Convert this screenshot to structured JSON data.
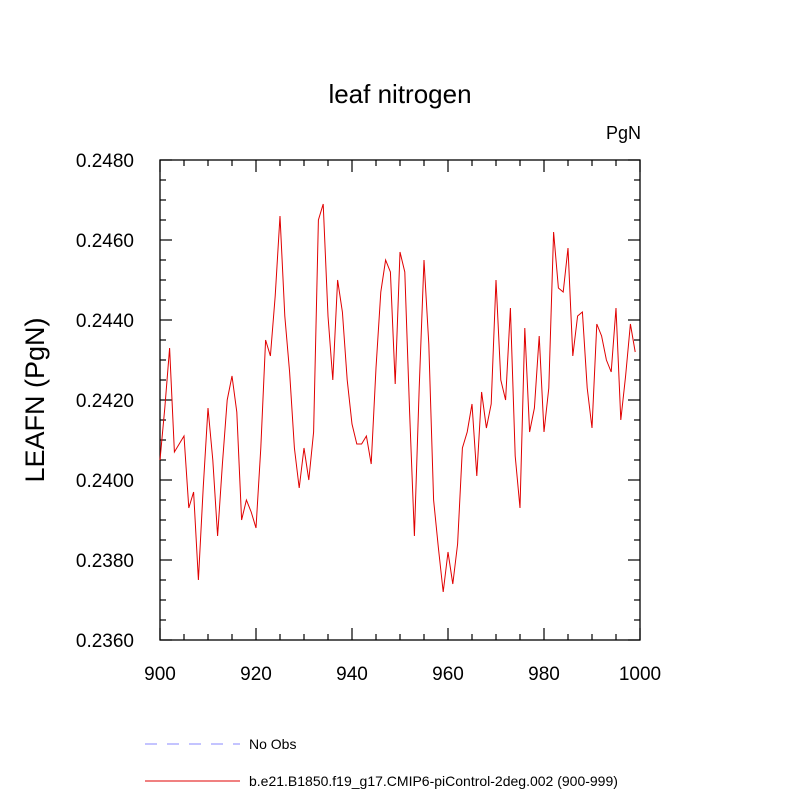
{
  "chart_data": {
    "type": "line",
    "title": "leaf nitrogen",
    "units_label": "PgN",
    "ylabel": "LEAFN  (PgN)",
    "xlabel": "",
    "xlim": [
      900,
      1000
    ],
    "ylim": [
      0.236,
      0.248
    ],
    "x_ticks": [
      900,
      920,
      940,
      960,
      980,
      1000
    ],
    "x_tick_labels": [
      "900",
      "920",
      "940",
      "960",
      "980",
      "1000"
    ],
    "y_ticks": [
      0.236,
      0.238,
      0.24,
      0.242,
      0.244,
      0.246,
      0.248
    ],
    "y_tick_labels": [
      "0.2360",
      "0.2380",
      "0.2400",
      "0.2420",
      "0.2440",
      "0.2460",
      "0.2480"
    ],
    "grid": false,
    "legend_position": "bottom",
    "series": [
      {
        "name": "No Obs",
        "color": "#8a8aff",
        "dash": true,
        "x": [],
        "values": []
      },
      {
        "name": "b.e21.B1850.f19_g17.CMIP6-piControl-2deg.002 (900-999)",
        "color": "#e00000",
        "dash": false,
        "x": [
          900,
          901,
          902,
          903,
          904,
          905,
          906,
          907,
          908,
          909,
          910,
          911,
          912,
          913,
          914,
          915,
          916,
          917,
          918,
          919,
          920,
          921,
          922,
          923,
          924,
          925,
          926,
          927,
          928,
          929,
          930,
          931,
          932,
          933,
          934,
          935,
          936,
          937,
          938,
          939,
          940,
          941,
          942,
          943,
          944,
          945,
          946,
          947,
          948,
          949,
          950,
          951,
          952,
          953,
          954,
          955,
          956,
          957,
          958,
          959,
          960,
          961,
          962,
          963,
          964,
          965,
          966,
          967,
          968,
          969,
          970,
          971,
          972,
          973,
          974,
          975,
          976,
          977,
          978,
          979,
          980,
          981,
          982,
          983,
          984,
          985,
          986,
          987,
          988,
          989,
          990,
          991,
          992,
          993,
          994,
          995,
          996,
          997,
          998,
          999
        ],
        "values": [
          0.2405,
          0.2418,
          0.2433,
          0.2407,
          0.2409,
          0.2411,
          0.2393,
          0.2397,
          0.2375,
          0.2398,
          0.2418,
          0.2405,
          0.2386,
          0.2404,
          0.242,
          0.2426,
          0.2417,
          0.239,
          0.2395,
          0.2392,
          0.2388,
          0.2408,
          0.2435,
          0.2431,
          0.2446,
          0.2466,
          0.2441,
          0.2427,
          0.2408,
          0.2398,
          0.2408,
          0.24,
          0.2412,
          0.2465,
          0.2469,
          0.2441,
          0.2425,
          0.245,
          0.2442,
          0.2425,
          0.2414,
          0.2409,
          0.2409,
          0.2411,
          0.2404,
          0.2428,
          0.2447,
          0.2455,
          0.2452,
          0.2424,
          0.2457,
          0.2452,
          0.2417,
          0.2386,
          0.2423,
          0.2455,
          0.2434,
          0.2395,
          0.2383,
          0.2372,
          0.2382,
          0.2374,
          0.2384,
          0.2408,
          0.2412,
          0.2419,
          0.2401,
          0.2422,
          0.2413,
          0.2419,
          0.245,
          0.2425,
          0.242,
          0.2443,
          0.2406,
          0.2393,
          0.2438,
          0.2412,
          0.2418,
          0.2436,
          0.2412,
          0.2423,
          0.2462,
          0.2448,
          0.2447,
          0.2458,
          0.2431,
          0.2441,
          0.2442,
          0.2423,
          0.2413,
          0.2439,
          0.2436,
          0.243,
          0.2427,
          0.2443,
          0.2415,
          0.2426,
          0.2439,
          0.2432
        ]
      }
    ]
  }
}
